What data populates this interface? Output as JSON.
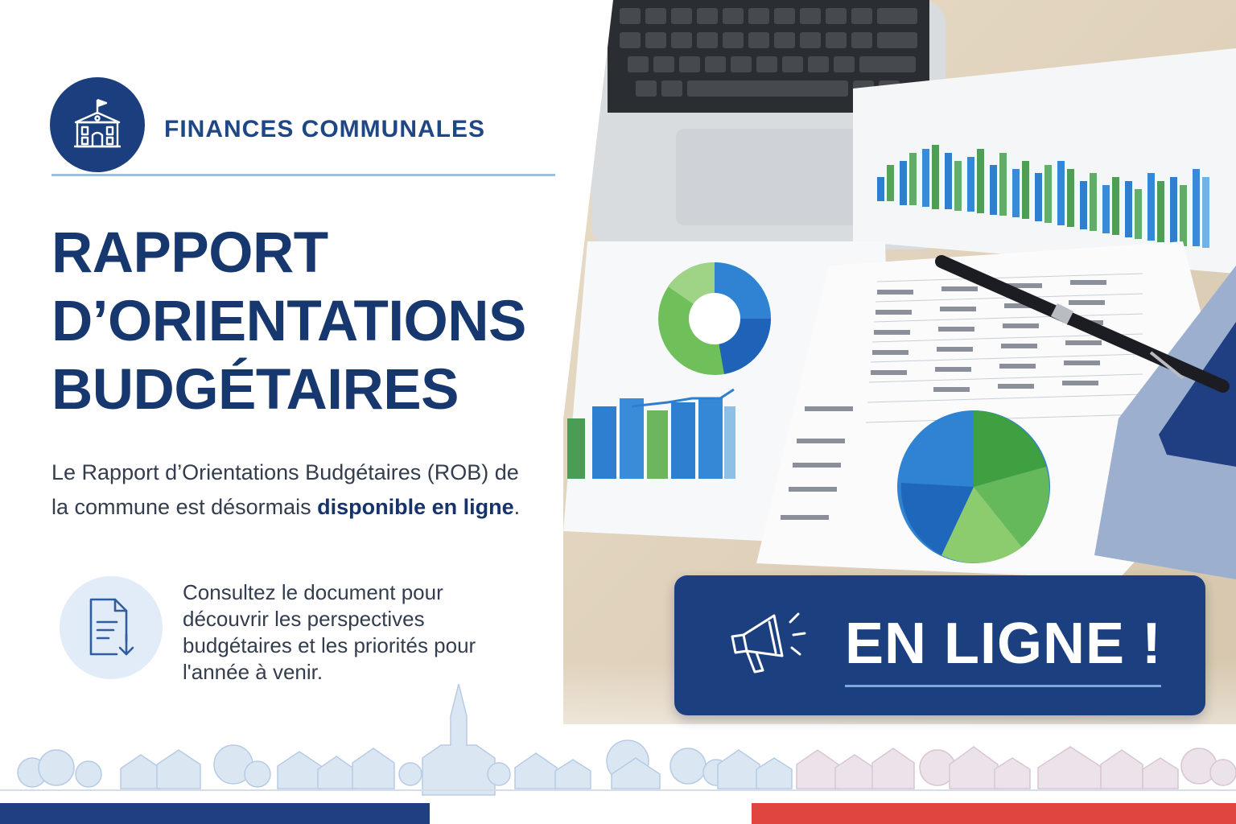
{
  "header": {
    "category": "FINANCES COMMUNALES",
    "badge_icon": "town-hall-icon"
  },
  "headline": {
    "line1": "RAPPORT",
    "line2": "D’ORIENTATIONS",
    "line3": "BUDGÉTAIRES"
  },
  "intro": {
    "text": "Le Rapport d’Orientations Budgétaires (ROB) de la commune est désormais ",
    "emphasis": "disponible en ligne",
    "end": "."
  },
  "consult": {
    "icon": "document-download-icon",
    "text": "Consultez le document pour découvrir les perspectives budgétaires et les priorités pour l'année à venir."
  },
  "banner": {
    "icon": "megaphone-icon",
    "label": "EN LIGNE !"
  },
  "colors": {
    "navy": "#1c3f7f",
    "accent_blue": "#9dbfe0",
    "flag_blue": "#1f3f82",
    "flag_white": "#ffffff",
    "flag_red": "#e0463f"
  }
}
